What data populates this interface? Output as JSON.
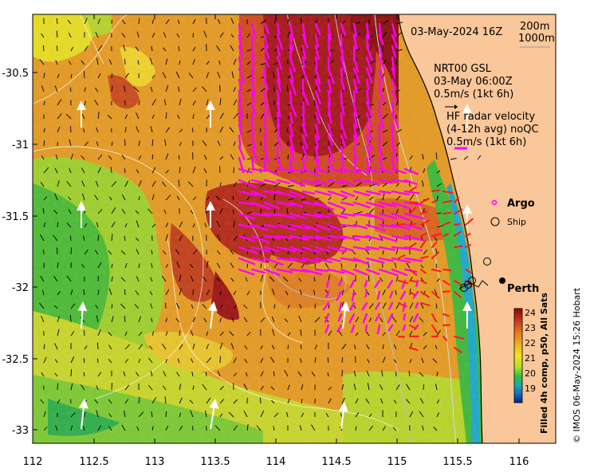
{
  "map": {
    "header": {
      "date": "03-May-2024 16Z",
      "iso200": "200m",
      "iso1000": "1000m"
    },
    "model": {
      "name": "NRT00 GSL",
      "time": "03-May 06:00Z",
      "scale": "0.5m/s (1kt 6h)"
    },
    "hf_radar": {
      "line1": "HF radar velocity",
      "line2": "(4-12h avg) noQC",
      "scale": "0.5m/s (1kt 6h)"
    },
    "legend": {
      "argo": "Argo",
      "ship": "Ship"
    },
    "city": "Perth",
    "colorbar": {
      "title": "Filled 4h comp, p50, All Sats",
      "ticks": [
        "24",
        "23",
        "22",
        "21",
        "20",
        "19"
      ]
    },
    "credit": "© IMOS 06-May-2024 15:26 Hobart",
    "x_axis": [
      "112",
      "112.5",
      "113",
      "113.5",
      "114",
      "114.5",
      "115",
      "115.5",
      "116"
    ],
    "y_axis": [
      "-30.5",
      "-31",
      "-31.5",
      "-32",
      "-32.5",
      "-33"
    ],
    "colors": {
      "land": "#f9c799",
      "radar_arrows": "#ff00ff",
      "model_arrows": "#ffffff",
      "argo": "#ff00ff"
    }
  }
}
